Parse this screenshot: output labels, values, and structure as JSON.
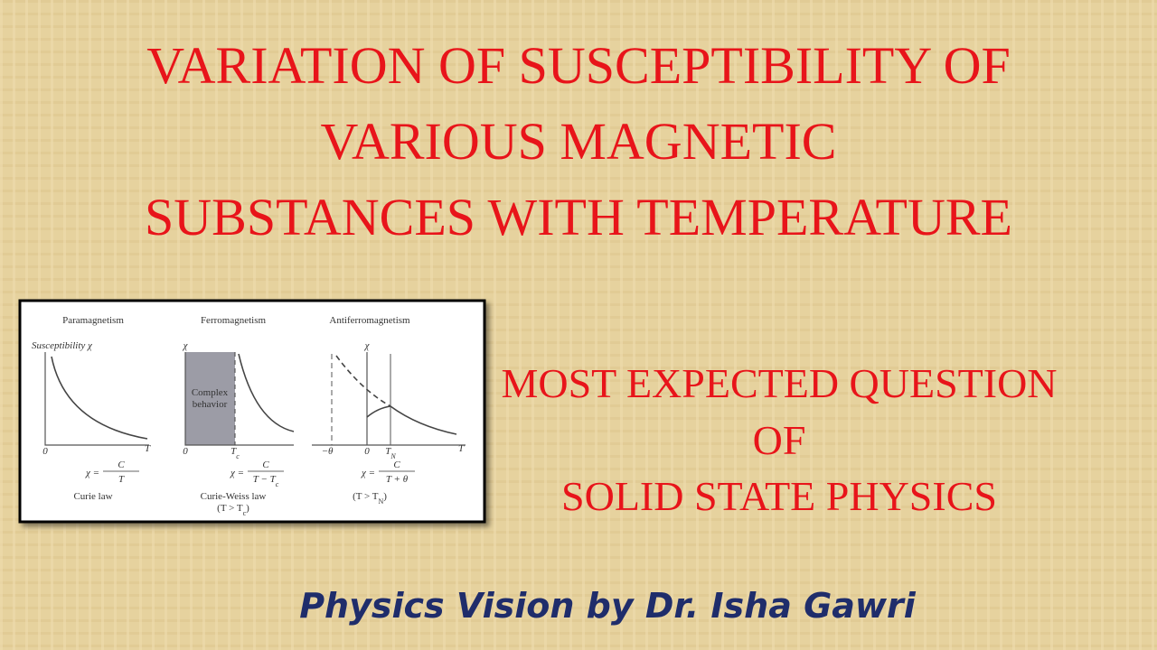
{
  "title": {
    "lines": [
      "VARIATION OF SUSCEPTIBILITY OF",
      "VARIOUS MAGNETIC",
      "SUBSTANCES WITH TEMPERATURE"
    ]
  },
  "figure": {
    "panels": [
      {
        "heading": "Paramagnetism",
        "y_axis_label": "Susceptibility χ",
        "x_ticks": [
          [
            "0"
          ]
        ],
        "x_axis_label": "T",
        "formula": {
          "lhs": "χ =",
          "numerator": "C",
          "denominator": [
            "T"
          ]
        },
        "caption": [
          [
            "Curie law"
          ]
        ]
      },
      {
        "heading": "Ferromagnetism",
        "y_axis_label": "χ",
        "x_ticks": [
          [
            "0"
          ],
          [
            "T",
            {
              "sub": "c"
            }
          ]
        ],
        "region_label": [
          "Complex",
          "behavior"
        ],
        "formula": {
          "lhs": "χ =",
          "numerator": "C",
          "denominator": [
            "T − T",
            {
              "sub": "c"
            }
          ]
        },
        "caption": [
          [
            "Curie-Weiss law"
          ],
          [
            "(T > T",
            {
              "sub": "c"
            },
            ")"
          ]
        ]
      },
      {
        "heading": "Antiferromagnetism",
        "y_axis_label": "χ",
        "x_ticks": [
          [
            "−θ"
          ],
          [
            "0"
          ],
          [
            "T",
            {
              "sub": "N"
            }
          ]
        ],
        "x_axis_label": "T",
        "formula": {
          "lhs": "χ =",
          "numerator": "C",
          "denominator": [
            "T + θ"
          ]
        },
        "caption": [
          [
            "(T > T",
            {
              "sub": "N"
            },
            ")"
          ]
        ]
      }
    ]
  },
  "subtitle": {
    "lines": [
      "MOST EXPECTED QUESTION",
      "OF",
      "SOLID STATE PHYSICS"
    ]
  },
  "footer": "Physics Vision by Dr. Isha Gawri"
}
